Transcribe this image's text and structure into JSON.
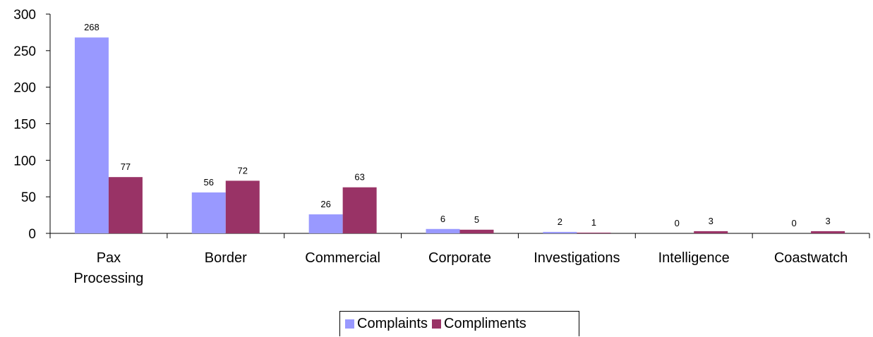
{
  "chart_data": {
    "type": "bar",
    "title": "",
    "xlabel": "",
    "ylabel": "",
    "categories": [
      "Pax\nProcessing",
      "Border",
      "Commercial",
      "Corporate",
      "Investigations",
      "Intelligence",
      "Coastwatch"
    ],
    "series": [
      {
        "name": "Complaints",
        "color": "#9999ff",
        "values": [
          268,
          56,
          26,
          6,
          2,
          0,
          0
        ]
      },
      {
        "name": "Compliments",
        "color": "#993366",
        "values": [
          77,
          72,
          63,
          5,
          1,
          3,
          3
        ]
      }
    ],
    "ylim": [
      0,
      300
    ],
    "yticks": [
      0,
      50,
      100,
      150,
      200,
      250,
      300
    ],
    "grid": false,
    "legend_position": "bottom"
  }
}
